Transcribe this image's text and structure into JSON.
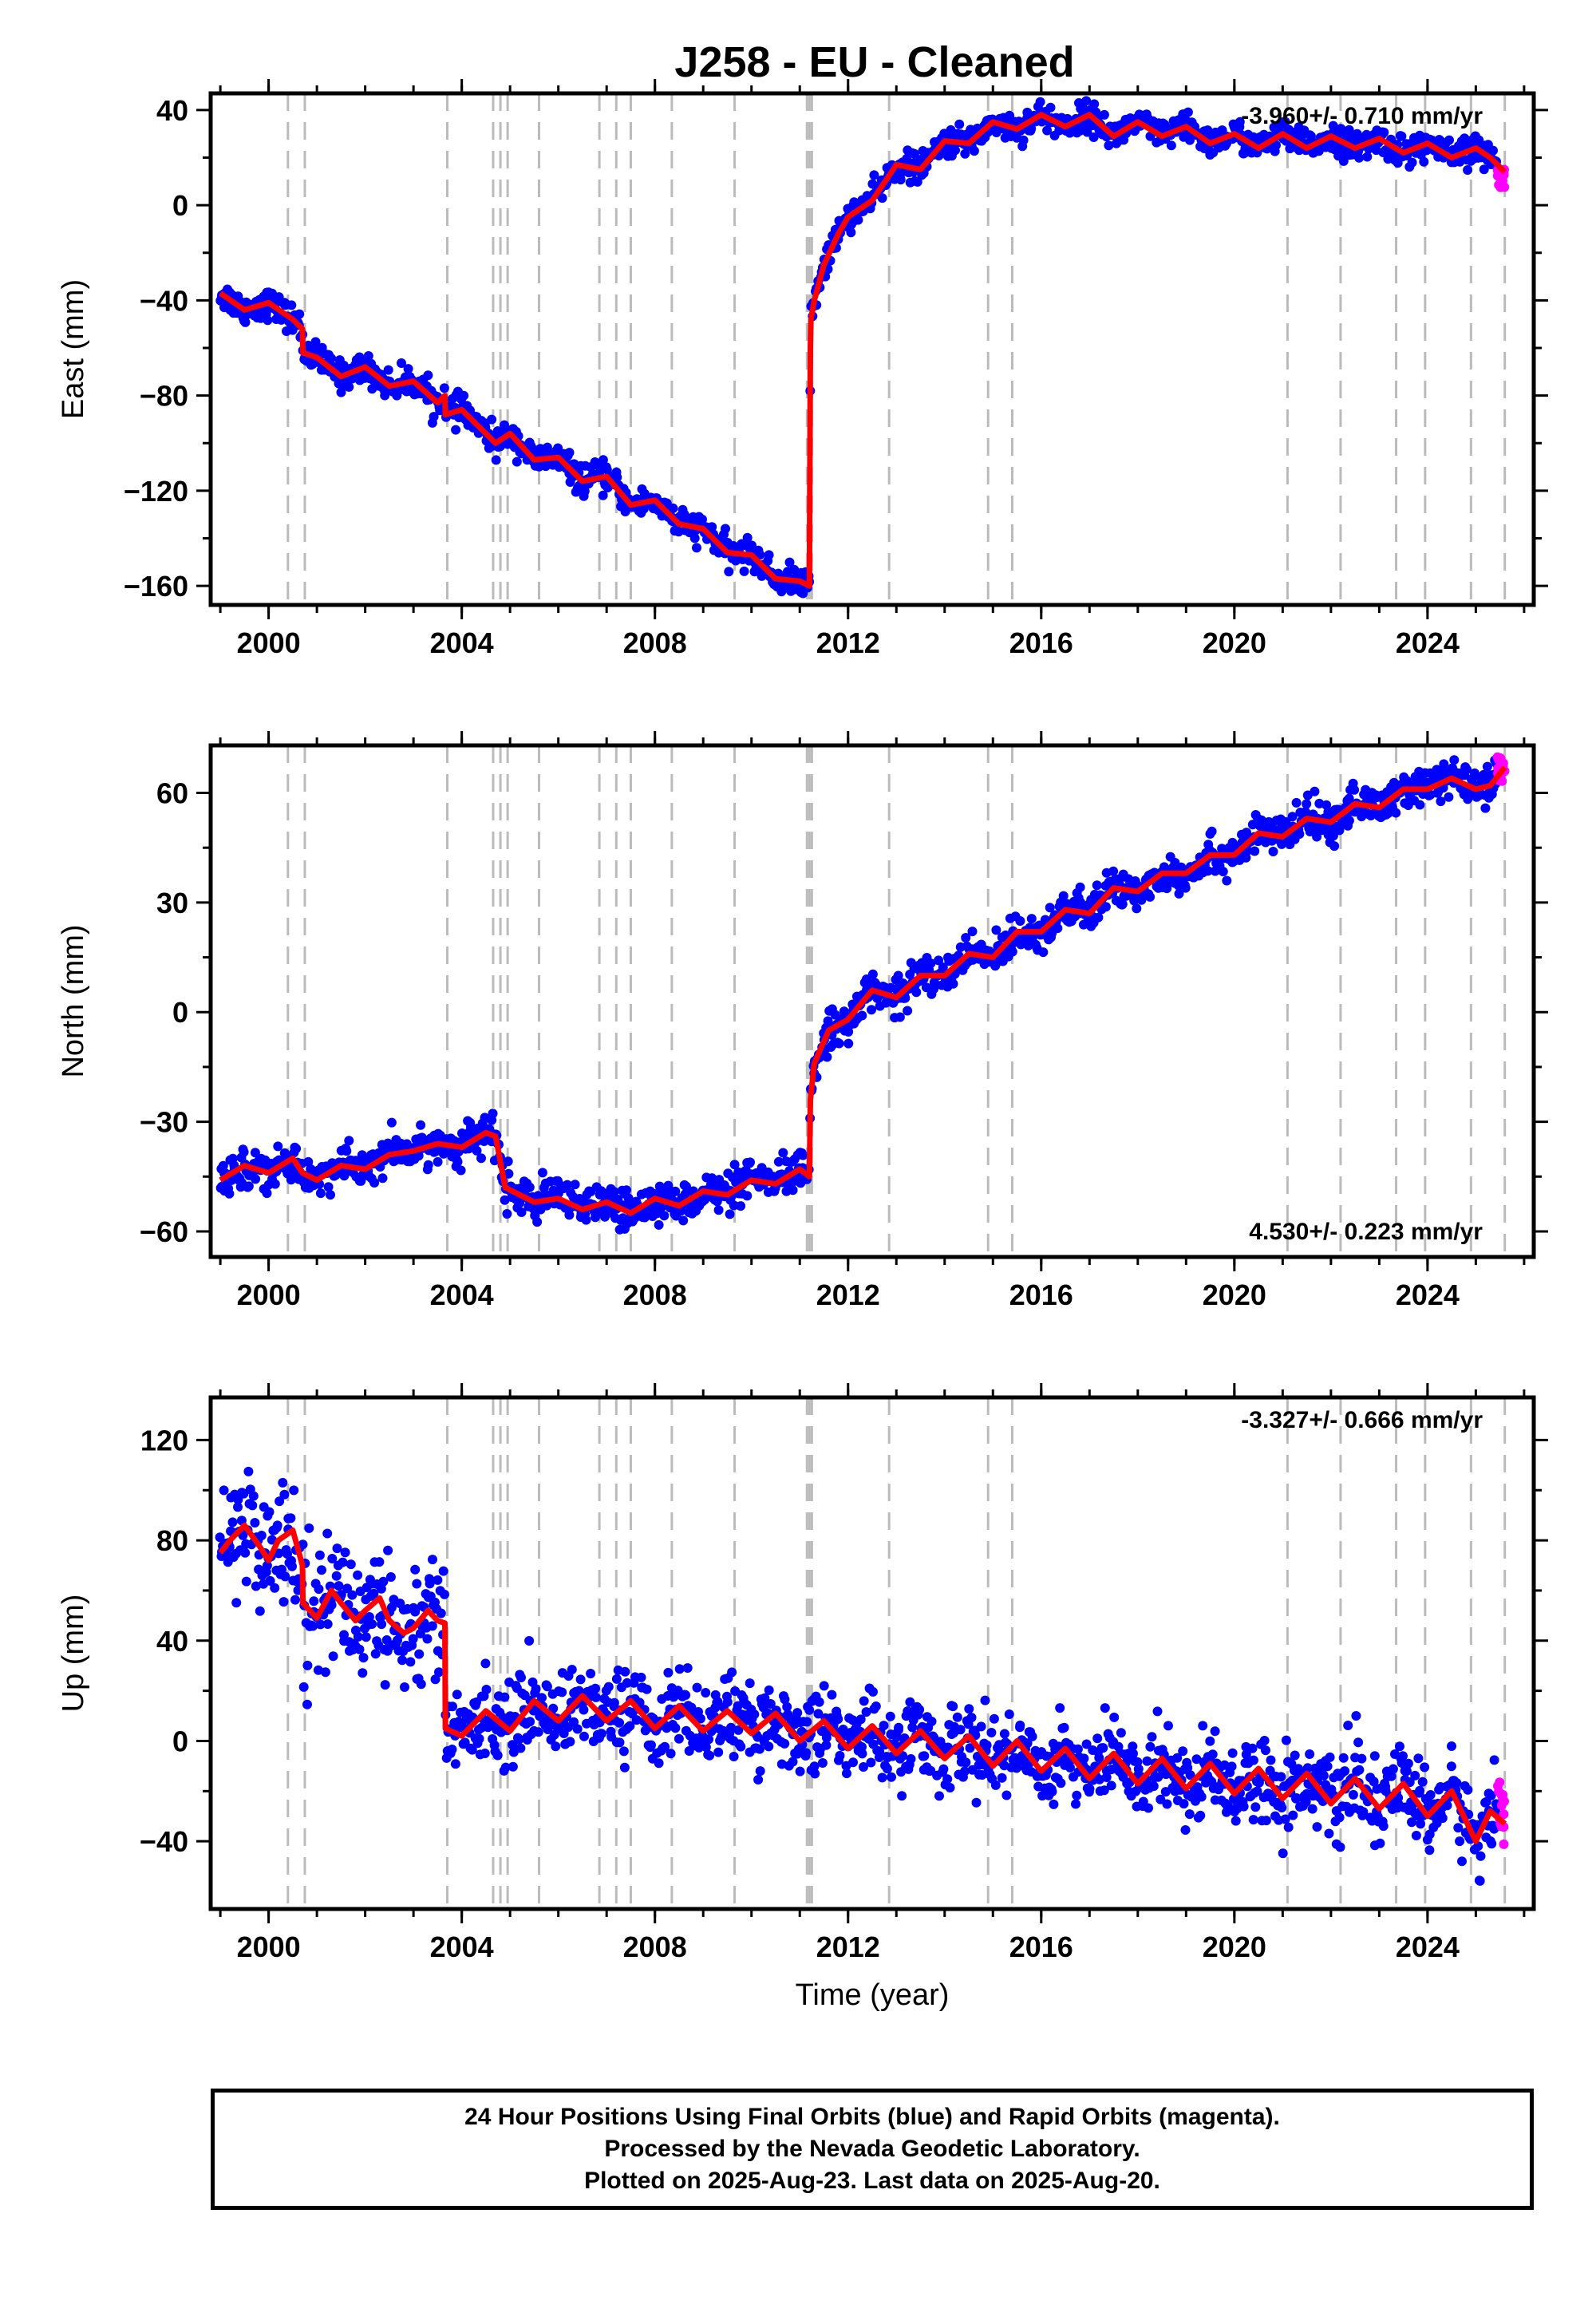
{
  "title": "J258  - EU - Cleaned",
  "footer": {
    "line1": "24 Hour Positions Using Final Orbits (blue) and Rapid Orbits (magenta).",
    "line2": "Processed by the Nevada Geodetic Laboratory.",
    "line3": "Plotted on 2025-Aug-23. Last data on 2025-Aug-20."
  },
  "colors": {
    "final": "#0000ff",
    "rapid": "#ff00ff",
    "model": "#ff0000",
    "event_line": "#bbbbbb"
  },
  "chart_data": [
    {
      "type": "scatter",
      "ylabel": "East (mm)",
      "xlabel": "",
      "xlim": [
        1998.8,
        2026.2
      ],
      "ylim": [
        -168,
        47
      ],
      "x_ticks": [
        2000,
        2004,
        2008,
        2012,
        2016,
        2020,
        2024
      ],
      "y_ticks": [
        40,
        0,
        -40,
        -80,
        -120,
        -160
      ],
      "rate_label": "-3.960+/- 0.710 mm/yr",
      "rate_position": "top-right",
      "grid": false,
      "model": {
        "name": "model fit",
        "x": [
          1999.0,
          1999.5,
          2000.0,
          2000.5,
          2000.7,
          2000.71,
          2001.0,
          2001.5,
          2002.0,
          2002.5,
          2003.0,
          2003.5,
          2003.65,
          2003.66,
          2004.0,
          2004.7,
          2005.0,
          2005.5,
          2006.0,
          2006.5,
          2007.0,
          2007.5,
          2008.0,
          2008.5,
          2009.0,
          2009.5,
          2010.0,
          2010.5,
          2011.0,
          2011.2,
          2011.22,
          2011.23,
          2011.3,
          2011.5,
          2011.8,
          2012.0,
          2012.5,
          2013.0,
          2013.5,
          2014.0,
          2014.5,
          2015.0,
          2015.5,
          2016.0,
          2016.5,
          2017.0,
          2017.5,
          2018.0,
          2018.5,
          2019.0,
          2019.5,
          2020.0,
          2020.5,
          2021.0,
          2021.5,
          2022.0,
          2022.5,
          2023.0,
          2023.5,
          2024.0,
          2024.5,
          2025.0,
          2025.3,
          2025.6
        ],
        "y": [
          -37,
          -44,
          -41,
          -48,
          -52,
          -62,
          -64,
          -72,
          -68,
          -76,
          -74,
          -83,
          -80,
          -88,
          -86,
          -100,
          -96,
          -107,
          -106,
          -116,
          -114,
          -126,
          -124,
          -134,
          -136,
          -146,
          -147,
          -157,
          -158,
          -160,
          -60,
          -48,
          -40,
          -25,
          -12,
          -5,
          2,
          17,
          15,
          27,
          26,
          35,
          32,
          38,
          33,
          38,
          29,
          35,
          29,
          33,
          26,
          30,
          24,
          30,
          24,
          29,
          24,
          28,
          22,
          26,
          20,
          24,
          20,
          14
        ],
        "seasonal_amplitude": 3
      },
      "scatter": {
        "spread": 3,
        "rapid_last_x": [
          2025.45,
          2025.6
        ],
        "rapid_range": [
          7,
          18
        ]
      }
    },
    {
      "type": "scatter",
      "ylabel": "North (mm)",
      "xlabel": "",
      "xlim": [
        1998.8,
        2026.2
      ],
      "ylim": [
        -67,
        73
      ],
      "x_ticks": [
        2000,
        2004,
        2008,
        2012,
        2016,
        2020,
        2024
      ],
      "y_ticks": [
        60,
        30,
        0,
        -30,
        -60
      ],
      "rate_label": "4.530+/- 0.223 mm/yr",
      "rate_position": "bottom-right",
      "grid": false,
      "model": {
        "name": "model fit",
        "x": [
          1999.0,
          1999.5,
          2000.0,
          2000.5,
          2000.7,
          2001.0,
          2001.5,
          2002.0,
          2002.5,
          2003.0,
          2003.5,
          2004.0,
          2004.5,
          2004.7,
          2004.9,
          2005.5,
          2006.0,
          2006.5,
          2007.0,
          2007.5,
          2008.0,
          2008.5,
          2009.0,
          2009.5,
          2010.0,
          2010.5,
          2011.0,
          2011.2,
          2011.22,
          2011.3,
          2011.6,
          2012.0,
          2012.5,
          2013.0,
          2013.5,
          2014.0,
          2014.5,
          2015.0,
          2015.5,
          2016.0,
          2016.5,
          2017.0,
          2017.5,
          2018.0,
          2018.5,
          2019.0,
          2019.5,
          2020.0,
          2020.5,
          2021.0,
          2021.5,
          2022.0,
          2022.5,
          2023.0,
          2023.5,
          2024.0,
          2024.5,
          2025.0,
          2025.3,
          2025.6
        ],
        "y": [
          -46,
          -42,
          -44,
          -40,
          -44,
          -46,
          -42,
          -43,
          -39,
          -38,
          -36,
          -37,
          -33,
          -34,
          -48,
          -52,
          -51,
          -54,
          -52,
          -55,
          -51,
          -53,
          -49,
          -50,
          -46,
          -47,
          -43,
          -45,
          -24,
          -14,
          -5,
          -2,
          6,
          4,
          10,
          10,
          16,
          15,
          22,
          22,
          28,
          27,
          34,
          33,
          38,
          38,
          43,
          43,
          49,
          48,
          53,
          52,
          57,
          56,
          61,
          61,
          64,
          61,
          62,
          67
        ],
        "seasonal_amplitude": 1.6
      },
      "scatter": {
        "spread": 2.6,
        "rapid_last_x": [
          2025.45,
          2025.6
        ],
        "rapid_range": [
          62,
          70
        ]
      }
    },
    {
      "type": "scatter",
      "ylabel": "Up (mm)",
      "xlabel": "Time (year)",
      "xlim": [
        1998.8,
        2026.2
      ],
      "ylim": [
        -67,
        137
      ],
      "x_ticks": [
        2000,
        2004,
        2008,
        2012,
        2016,
        2020,
        2024
      ],
      "y_ticks": [
        120,
        80,
        40,
        0,
        -40
      ],
      "rate_label": "-3.327+/- 0.666 mm/yr",
      "rate_position": "top-right",
      "grid": false,
      "model": {
        "name": "model fit",
        "x": [
          1999.0,
          1999.2,
          1999.5,
          1999.8,
          2000.0,
          2000.2,
          2000.5,
          2000.7,
          2000.71,
          2001.0,
          2001.3,
          2001.5,
          2001.8,
          2002.0,
          2002.3,
          2002.5,
          2002.8,
          2003.0,
          2003.3,
          2003.5,
          2003.65,
          2003.66,
          2004.0,
          2004.5,
          2005.0,
          2005.5,
          2006.0,
          2006.5,
          2007.0,
          2007.5,
          2008.0,
          2008.5,
          2009.0,
          2009.5,
          2010.0,
          2010.5,
          2011.0,
          2011.5,
          2012.0,
          2012.5,
          2013.0,
          2013.5,
          2014.0,
          2014.5,
          2015.0,
          2015.5,
          2016.0,
          2016.5,
          2017.0,
          2017.5,
          2018.0,
          2018.5,
          2019.0,
          2019.5,
          2020.0,
          2020.5,
          2021.0,
          2021.5,
          2022.0,
          2022.5,
          2023.0,
          2023.5,
          2024.0,
          2024.5,
          2025.0,
          2025.3,
          2025.6
        ],
        "y": [
          75,
          80,
          86,
          78,
          72,
          80,
          84,
          70,
          55,
          49,
          60,
          55,
          48,
          52,
          57,
          48,
          43,
          45,
          52,
          48,
          47,
          5,
          2,
          12,
          4,
          16,
          8,
          18,
          8,
          16,
          5,
          14,
          4,
          12,
          3,
          11,
          0,
          8,
          -3,
          6,
          -5,
          4,
          -7,
          2,
          -10,
          0,
          -12,
          -3,
          -15,
          -5,
          -17,
          -7,
          -19,
          -9,
          -21,
          -11,
          -23,
          -13,
          -25,
          -15,
          -27,
          -17,
          -30,
          -20,
          -40,
          -28,
          -33
        ],
        "seasonal_amplitude": 0
      },
      "scatter": {
        "spread": 8,
        "rapid_last_x": [
          2025.45,
          2025.6
        ],
        "rapid_range": [
          -42,
          -14
        ]
      }
    }
  ],
  "event_lines_x": [
    2000.4,
    2000.75,
    2003.7,
    2004.65,
    2004.8,
    2004.95,
    2005.6,
    2006.85,
    2007.2,
    2007.5,
    2008.35,
    2009.65,
    2011.15,
    2011.2,
    2011.25,
    2012.85,
    2014.9,
    2015.4,
    2021.1,
    2022.2,
    2023.35,
    2023.95,
    2024.9,
    2025.6
  ]
}
